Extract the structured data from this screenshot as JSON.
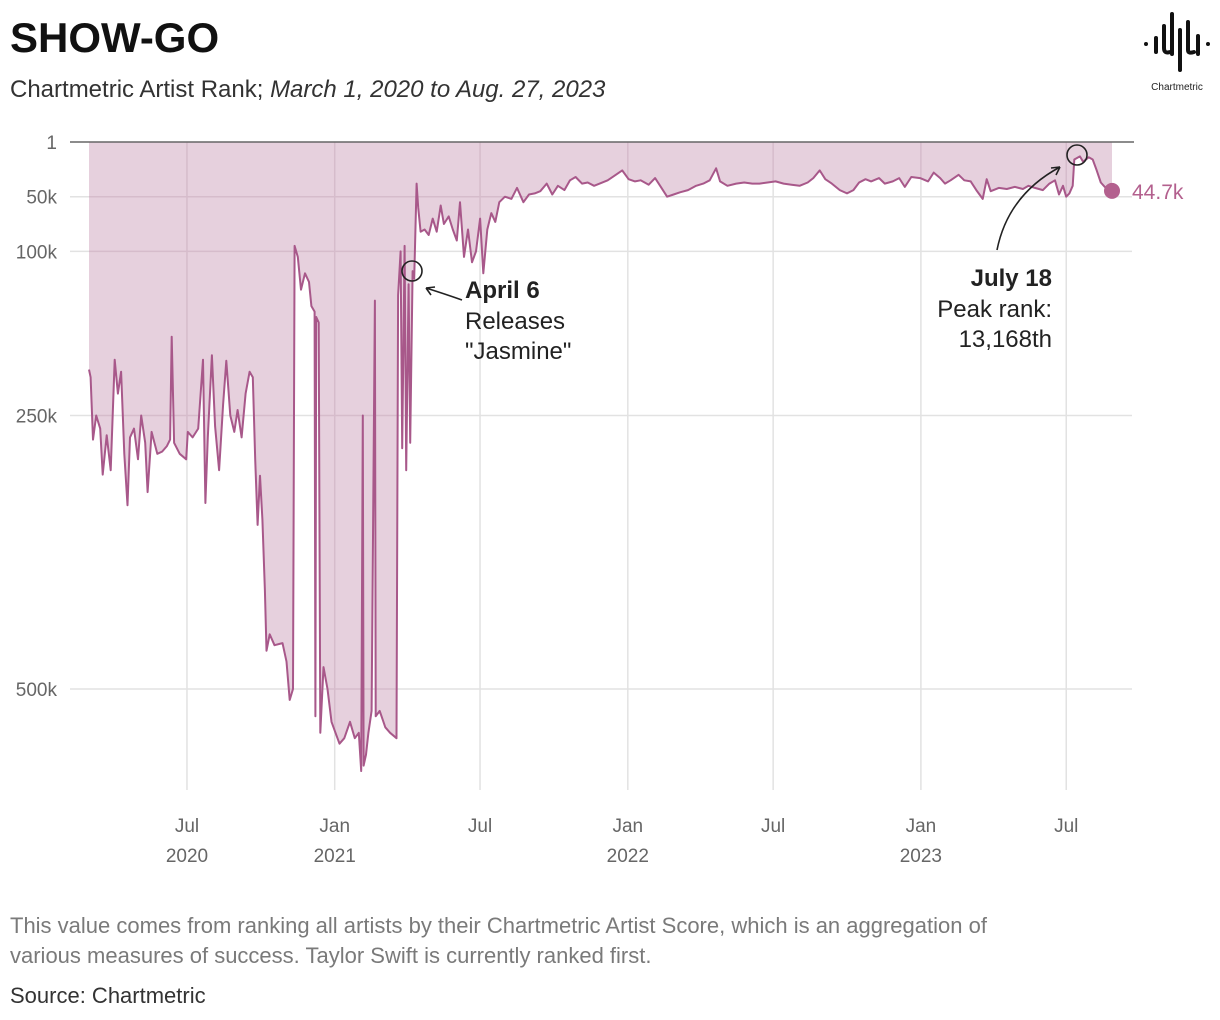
{
  "header": {
    "title": "SHOW-GO",
    "subtitle_plain": "Chartmetric Artist Rank; ",
    "subtitle_italic": "March 1, 2020 to Aug. 27, 2023",
    "logo_text": "Chartmetric"
  },
  "footer": {
    "note_line1": "This value comes from ranking all artists by their Chartmetric Artist Score, which is an aggregation of",
    "note_line2": "various measures of success. Taylor Swift is currently ranked first.",
    "source": "Source: Chartmetric"
  },
  "chart_data": {
    "type": "area",
    "title": "",
    "xlabel": "",
    "ylabel": "",
    "y_inverted": true,
    "ylim": [
      1,
      590000
    ],
    "xlim": [
      "2020-03-01",
      "2023-08-27"
    ],
    "grid": true,
    "colors": {
      "line": "#a8588a",
      "fill": "#e6d0dd",
      "end_dot": "#b3608e"
    },
    "y_ticks": [
      {
        "value": 1,
        "label": "1"
      },
      {
        "value": 50000,
        "label": "50k"
      },
      {
        "value": 100000,
        "label": "100k"
      },
      {
        "value": 250000,
        "label": "250k"
      },
      {
        "value": 500000,
        "label": "500k"
      }
    ],
    "x_ticks": [
      {
        "date": "2020-07-01",
        "month": "Jul",
        "year": "2020"
      },
      {
        "date": "2021-01-01",
        "month": "Jan",
        "year": "2021"
      },
      {
        "date": "2021-07-01",
        "month": "Jul",
        "year": ""
      },
      {
        "date": "2022-01-01",
        "month": "Jan",
        "year": "2022"
      },
      {
        "date": "2022-07-01",
        "month": "Jul",
        "year": ""
      },
      {
        "date": "2023-01-01",
        "month": "Jan",
        "year": "2023"
      },
      {
        "date": "2023-07-01",
        "month": "Jul",
        "year": ""
      }
    ],
    "end_label": "44.7k",
    "annotations": [
      {
        "date": "2021-04-06",
        "rank": 118000,
        "title": "April 6",
        "line1": "Releases",
        "line2": "\"Jasmine\""
      },
      {
        "date": "2023-07-18",
        "rank": 13168,
        "title": "July 18",
        "line1": "Peak rank:",
        "line2": "13,168th"
      }
    ],
    "series": [
      [
        "2020-03-01",
        208000
      ],
      [
        "2020-03-03",
        215000
      ],
      [
        "2020-03-06",
        272000
      ],
      [
        "2020-03-10",
        250000
      ],
      [
        "2020-03-15",
        262000
      ],
      [
        "2020-03-18",
        304000
      ],
      [
        "2020-03-23",
        268000
      ],
      [
        "2020-03-28",
        300000
      ],
      [
        "2020-04-02",
        199000
      ],
      [
        "2020-04-06",
        230000
      ],
      [
        "2020-04-10",
        210000
      ],
      [
        "2020-04-14",
        285000
      ],
      [
        "2020-04-18",
        332000
      ],
      [
        "2020-04-21",
        270000
      ],
      [
        "2020-04-26",
        262000
      ],
      [
        "2020-05-01",
        290000
      ],
      [
        "2020-05-05",
        250000
      ],
      [
        "2020-05-10",
        275000
      ],
      [
        "2020-05-13",
        320000
      ],
      [
        "2020-05-18",
        265000
      ],
      [
        "2020-05-25",
        285000
      ],
      [
        "2020-05-31",
        283000
      ],
      [
        "2020-06-06",
        278000
      ],
      [
        "2020-06-10",
        272000
      ],
      [
        "2020-06-12",
        178000
      ],
      [
        "2020-06-15",
        275000
      ],
      [
        "2020-06-22",
        285000
      ],
      [
        "2020-06-30",
        290000
      ],
      [
        "2020-07-02",
        265000
      ],
      [
        "2020-07-08",
        270000
      ],
      [
        "2020-07-15",
        262000
      ],
      [
        "2020-07-21",
        199000
      ],
      [
        "2020-07-24",
        330000
      ],
      [
        "2020-07-27",
        270000
      ],
      [
        "2020-08-01",
        195000
      ],
      [
        "2020-08-05",
        260000
      ],
      [
        "2020-08-10",
        300000
      ],
      [
        "2020-08-15",
        240000
      ],
      [
        "2020-08-19",
        200000
      ],
      [
        "2020-08-24",
        250000
      ],
      [
        "2020-08-29",
        265000
      ],
      [
        "2020-09-02",
        245000
      ],
      [
        "2020-09-07",
        270000
      ],
      [
        "2020-09-12",
        230000
      ],
      [
        "2020-09-17",
        210000
      ],
      [
        "2020-09-21",
        215000
      ],
      [
        "2020-09-24",
        290000
      ],
      [
        "2020-09-27",
        350000
      ],
      [
        "2020-09-30",
        305000
      ],
      [
        "2020-10-03",
        345000
      ],
      [
        "2020-10-06",
        410000
      ],
      [
        "2020-10-08",
        465000
      ],
      [
        "2020-10-12",
        450000
      ],
      [
        "2020-10-18",
        460000
      ],
      [
        "2020-10-28",
        458000
      ],
      [
        "2020-11-02",
        475000
      ],
      [
        "2020-11-06",
        510000
      ],
      [
        "2020-11-10",
        500000
      ],
      [
        "2020-11-12",
        95000
      ],
      [
        "2020-11-16",
        105000
      ],
      [
        "2020-11-20",
        135000
      ],
      [
        "2020-11-25",
        120000
      ],
      [
        "2020-11-30",
        128000
      ],
      [
        "2020-12-03",
        150000
      ],
      [
        "2020-12-07",
        155000
      ],
      [
        "2020-12-08",
        525000
      ],
      [
        "2020-12-09",
        160000
      ],
      [
        "2020-12-12",
        165000
      ],
      [
        "2020-12-14",
        540000
      ],
      [
        "2020-12-18",
        480000
      ],
      [
        "2020-12-23",
        500000
      ],
      [
        "2020-12-28",
        530000
      ],
      [
        "2021-01-02",
        540000
      ],
      [
        "2021-01-07",
        550000
      ],
      [
        "2021-01-13",
        545000
      ],
      [
        "2021-01-20",
        530000
      ],
      [
        "2021-01-26",
        545000
      ],
      [
        "2021-01-31",
        540000
      ],
      [
        "2021-02-03",
        575000
      ],
      [
        "2021-02-05",
        250000
      ],
      [
        "2021-02-06",
        570000
      ],
      [
        "2021-02-09",
        560000
      ],
      [
        "2021-02-12",
        540000
      ],
      [
        "2021-02-16",
        520000
      ],
      [
        "2021-02-20",
        145000
      ],
      [
        "2021-02-21",
        525000
      ],
      [
        "2021-02-26",
        520000
      ],
      [
        "2021-03-05",
        535000
      ],
      [
        "2021-03-11",
        540000
      ],
      [
        "2021-03-19",
        545000
      ],
      [
        "2021-03-21",
        140000
      ],
      [
        "2021-03-24",
        100000
      ],
      [
        "2021-03-26",
        280000
      ],
      [
        "2021-03-29",
        95000
      ],
      [
        "2021-03-31",
        300000
      ],
      [
        "2021-04-03",
        130000
      ],
      [
        "2021-04-05",
        275000
      ],
      [
        "2021-04-08",
        118000
      ],
      [
        "2021-04-10",
        125000
      ],
      [
        "2021-04-13",
        38000
      ],
      [
        "2021-04-15",
        60000
      ],
      [
        "2021-04-18",
        82000
      ],
      [
        "2021-04-23",
        80000
      ],
      [
        "2021-04-28",
        85000
      ],
      [
        "2021-05-03",
        70000
      ],
      [
        "2021-05-08",
        82000
      ],
      [
        "2021-05-13",
        58000
      ],
      [
        "2021-05-17",
        75000
      ],
      [
        "2021-05-23",
        68000
      ],
      [
        "2021-05-28",
        80000
      ],
      [
        "2021-06-02",
        90000
      ],
      [
        "2021-06-06",
        55000
      ],
      [
        "2021-06-11",
        105000
      ],
      [
        "2021-06-16",
        80000
      ],
      [
        "2021-06-21",
        110000
      ],
      [
        "2021-06-26",
        100000
      ],
      [
        "2021-07-01",
        70000
      ],
      [
        "2021-07-05",
        120000
      ],
      [
        "2021-07-10",
        80000
      ],
      [
        "2021-07-15",
        65000
      ],
      [
        "2021-07-20",
        73000
      ],
      [
        "2021-07-25",
        55000
      ],
      [
        "2021-08-01",
        50000
      ],
      [
        "2021-08-09",
        52000
      ],
      [
        "2021-08-16",
        42000
      ],
      [
        "2021-08-24",
        55000
      ],
      [
        "2021-08-31",
        48000
      ],
      [
        "2021-09-07",
        47000
      ],
      [
        "2021-09-14",
        45000
      ],
      [
        "2021-09-22",
        38000
      ],
      [
        "2021-09-29",
        48000
      ],
      [
        "2021-10-06",
        40000
      ],
      [
        "2021-10-14",
        44000
      ],
      [
        "2021-10-21",
        35000
      ],
      [
        "2021-10-28",
        32000
      ],
      [
        "2021-11-05",
        38000
      ],
      [
        "2021-11-12",
        37000
      ],
      [
        "2021-11-20",
        40000
      ],
      [
        "2021-11-27",
        38000
      ],
      [
        "2021-12-07",
        35000
      ],
      [
        "2021-12-17",
        30000
      ],
      [
        "2021-12-25",
        26000
      ],
      [
        "2022-01-02",
        34000
      ],
      [
        "2022-01-10",
        36000
      ],
      [
        "2022-01-17",
        35000
      ],
      [
        "2022-01-27",
        39000
      ],
      [
        "2022-02-04",
        33000
      ],
      [
        "2022-02-12",
        42000
      ],
      [
        "2022-02-19",
        50000
      ],
      [
        "2022-02-27",
        48000
      ],
      [
        "2022-03-07",
        46000
      ],
      [
        "2022-03-17",
        44000
      ],
      [
        "2022-03-27",
        40000
      ],
      [
        "2022-04-05",
        38000
      ],
      [
        "2022-04-13",
        35000
      ],
      [
        "2022-04-21",
        24000
      ],
      [
        "2022-04-26",
        36000
      ],
      [
        "2022-05-05",
        40000
      ],
      [
        "2022-05-16",
        38000
      ],
      [
        "2022-05-26",
        37000
      ],
      [
        "2022-06-05",
        38000
      ],
      [
        "2022-06-14",
        38000
      ],
      [
        "2022-06-24",
        37000
      ],
      [
        "2022-07-04",
        36000
      ],
      [
        "2022-07-14",
        38000
      ],
      [
        "2022-07-24",
        39000
      ],
      [
        "2022-08-03",
        40000
      ],
      [
        "2022-08-13",
        37000
      ],
      [
        "2022-08-20",
        33000
      ],
      [
        "2022-08-28",
        26000
      ],
      [
        "2022-09-04",
        34000
      ],
      [
        "2022-09-12",
        38000
      ],
      [
        "2022-09-22",
        44000
      ],
      [
        "2022-10-01",
        47000
      ],
      [
        "2022-10-09",
        44000
      ],
      [
        "2022-10-16",
        37000
      ],
      [
        "2022-10-24",
        34000
      ],
      [
        "2022-10-31",
        36000
      ],
      [
        "2022-11-10",
        33000
      ],
      [
        "2022-11-17",
        38000
      ],
      [
        "2022-11-27",
        36000
      ],
      [
        "2022-12-05",
        33000
      ],
      [
        "2022-12-12",
        41000
      ],
      [
        "2022-12-20",
        32000
      ],
      [
        "2022-12-31",
        33000
      ],
      [
        "2023-01-10",
        36000
      ],
      [
        "2023-01-17",
        28000
      ],
      [
        "2023-01-25",
        33000
      ],
      [
        "2023-01-31",
        38000
      ],
      [
        "2023-02-07",
        35000
      ],
      [
        "2023-02-17",
        30000
      ],
      [
        "2023-02-24",
        35000
      ],
      [
        "2023-03-04",
        36000
      ],
      [
        "2023-03-11",
        44000
      ],
      [
        "2023-03-19",
        52000
      ],
      [
        "2023-03-24",
        34000
      ],
      [
        "2023-03-29",
        45000
      ],
      [
        "2023-04-08",
        42000
      ],
      [
        "2023-04-18",
        43000
      ],
      [
        "2023-04-28",
        41000
      ],
      [
        "2023-05-08",
        43000
      ],
      [
        "2023-05-15",
        40000
      ],
      [
        "2023-05-23",
        42000
      ],
      [
        "2023-06-02",
        44000
      ],
      [
        "2023-06-10",
        38000
      ],
      [
        "2023-06-17",
        35000
      ],
      [
        "2023-06-22",
        48000
      ],
      [
        "2023-06-27",
        40000
      ],
      [
        "2023-07-01",
        50000
      ],
      [
        "2023-07-05",
        47000
      ],
      [
        "2023-07-09",
        40000
      ],
      [
        "2023-07-11",
        16000
      ],
      [
        "2023-07-18",
        13168
      ],
      [
        "2023-07-22",
        18000
      ],
      [
        "2023-07-29",
        14000
      ],
      [
        "2023-08-03",
        16000
      ],
      [
        "2023-08-08",
        26000
      ],
      [
        "2023-08-13",
        37000
      ],
      [
        "2023-08-18",
        41000
      ],
      [
        "2023-08-22",
        43000
      ],
      [
        "2023-08-27",
        44700
      ]
    ]
  }
}
